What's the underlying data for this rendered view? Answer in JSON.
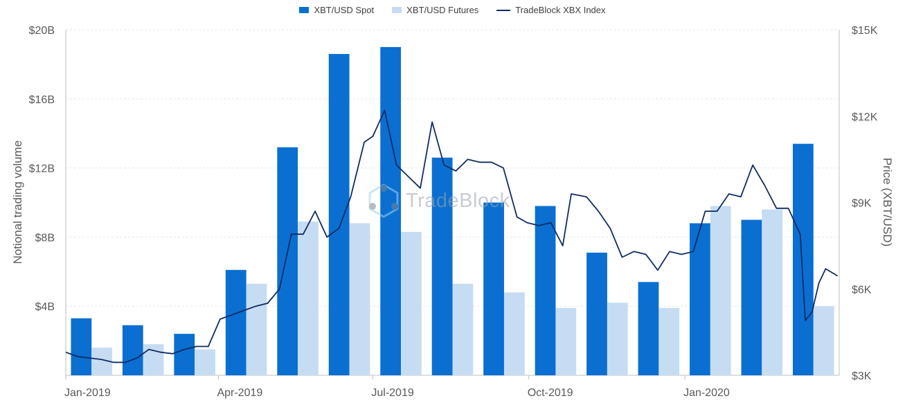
{
  "legend": {
    "spot": "XBT/USD Spot",
    "futures": "XBT/USD Futures",
    "index": "TradeBlock XBX Index"
  },
  "colors": {
    "spot": "#0a6fd1",
    "futures": "#c6dcf2",
    "index": "#0f2c63",
    "grid": "#e6e6e6",
    "axis": "#bfbfbf"
  },
  "watermark": {
    "text": "TradeBlock",
    "icon": "tradeblock-hexagon-logo"
  },
  "chart_data": {
    "type": "bar",
    "ylabel": "Notional trading volume",
    "y2label": "Price (XBT/USD)",
    "ylim": [
      0,
      20
    ],
    "y2lim": [
      3000,
      15000
    ],
    "y_ticks": [
      "$4B",
      "$8B",
      "$12B",
      "$16B",
      "$20B"
    ],
    "y2_ticks": [
      "$3K",
      "$6K",
      "$9K",
      "$12K",
      "$15K"
    ],
    "x_ticks": [
      "Jan-2019",
      "Apr-2019",
      "Jul-2019",
      "Oct-2019",
      "Jan-2020"
    ],
    "categories": [
      "2019-01",
      "2019-02",
      "2019-03",
      "2019-04",
      "2019-05",
      "2019-06",
      "2019-07",
      "2019-08",
      "2019-09",
      "2019-10",
      "2019-11",
      "2019-12",
      "2020-01",
      "2020-02",
      "2020-03"
    ],
    "series": [
      {
        "name": "XBT/USD Spot",
        "kind": "bar",
        "unit": "billion USD",
        "values": [
          3.3,
          2.9,
          2.4,
          6.1,
          13.2,
          18.6,
          19.0,
          12.6,
          10.0,
          9.8,
          7.1,
          5.4,
          8.8,
          9.0,
          13.4
        ]
      },
      {
        "name": "XBT/USD Futures",
        "kind": "bar",
        "unit": "billion USD",
        "values": [
          1.6,
          1.8,
          1.5,
          5.3,
          8.9,
          8.8,
          8.3,
          5.3,
          4.8,
          3.9,
          4.2,
          3.9,
          9.8,
          9.6,
          4.0
        ]
      },
      {
        "name": "TradeBlock XBX Index",
        "kind": "line",
        "axis": "right",
        "unit": "USD",
        "x": [
          "2019-01-01",
          "2019-01-08",
          "2019-01-15",
          "2019-01-22",
          "2019-01-29",
          "2019-02-05",
          "2019-02-12",
          "2019-02-19",
          "2019-02-26",
          "2019-03-05",
          "2019-03-12",
          "2019-03-19",
          "2019-03-26",
          "2019-04-02",
          "2019-04-09",
          "2019-04-16",
          "2019-04-23",
          "2019-04-30",
          "2019-05-07",
          "2019-05-14",
          "2019-05-21",
          "2019-05-28",
          "2019-06-04",
          "2019-06-11",
          "2019-06-18",
          "2019-06-26",
          "2019-07-01",
          "2019-07-08",
          "2019-07-15",
          "2019-07-22",
          "2019-07-29",
          "2019-08-05",
          "2019-08-12",
          "2019-08-19",
          "2019-08-26",
          "2019-09-02",
          "2019-09-09",
          "2019-09-16",
          "2019-09-24",
          "2019-09-30",
          "2019-10-07",
          "2019-10-14",
          "2019-10-21",
          "2019-10-26",
          "2019-11-04",
          "2019-11-11",
          "2019-11-18",
          "2019-11-25",
          "2019-12-02",
          "2019-12-09",
          "2019-12-16",
          "2019-12-23",
          "2019-12-30",
          "2020-01-06",
          "2020-01-13",
          "2020-01-20",
          "2020-01-27",
          "2020-02-03",
          "2020-02-10",
          "2020-02-17",
          "2020-02-24",
          "2020-03-02",
          "2020-03-09",
          "2020-03-12",
          "2020-03-16",
          "2020-03-20",
          "2020-03-24",
          "2020-03-31"
        ],
        "values": [
          3800,
          3650,
          3600,
          3550,
          3450,
          3450,
          3600,
          3900,
          3800,
          3750,
          3900,
          4000,
          4000,
          4950,
          5100,
          5250,
          5400,
          5500,
          6000,
          7900,
          7900,
          8700,
          7800,
          8100,
          9200,
          11100,
          11300,
          12200,
          10300,
          9900,
          9500,
          11800,
          10300,
          10100,
          10500,
          10400,
          10400,
          10200,
          8500,
          8300,
          8200,
          8300,
          7500,
          9300,
          9200,
          8700,
          8100,
          7100,
          7300,
          7200,
          6650,
          7300,
          7200,
          7300,
          8700,
          8700,
          9300,
          9200,
          10300,
          9600,
          8800,
          8800,
          7900,
          4900,
          5200,
          6200,
          6700,
          6450
        ]
      }
    ]
  }
}
